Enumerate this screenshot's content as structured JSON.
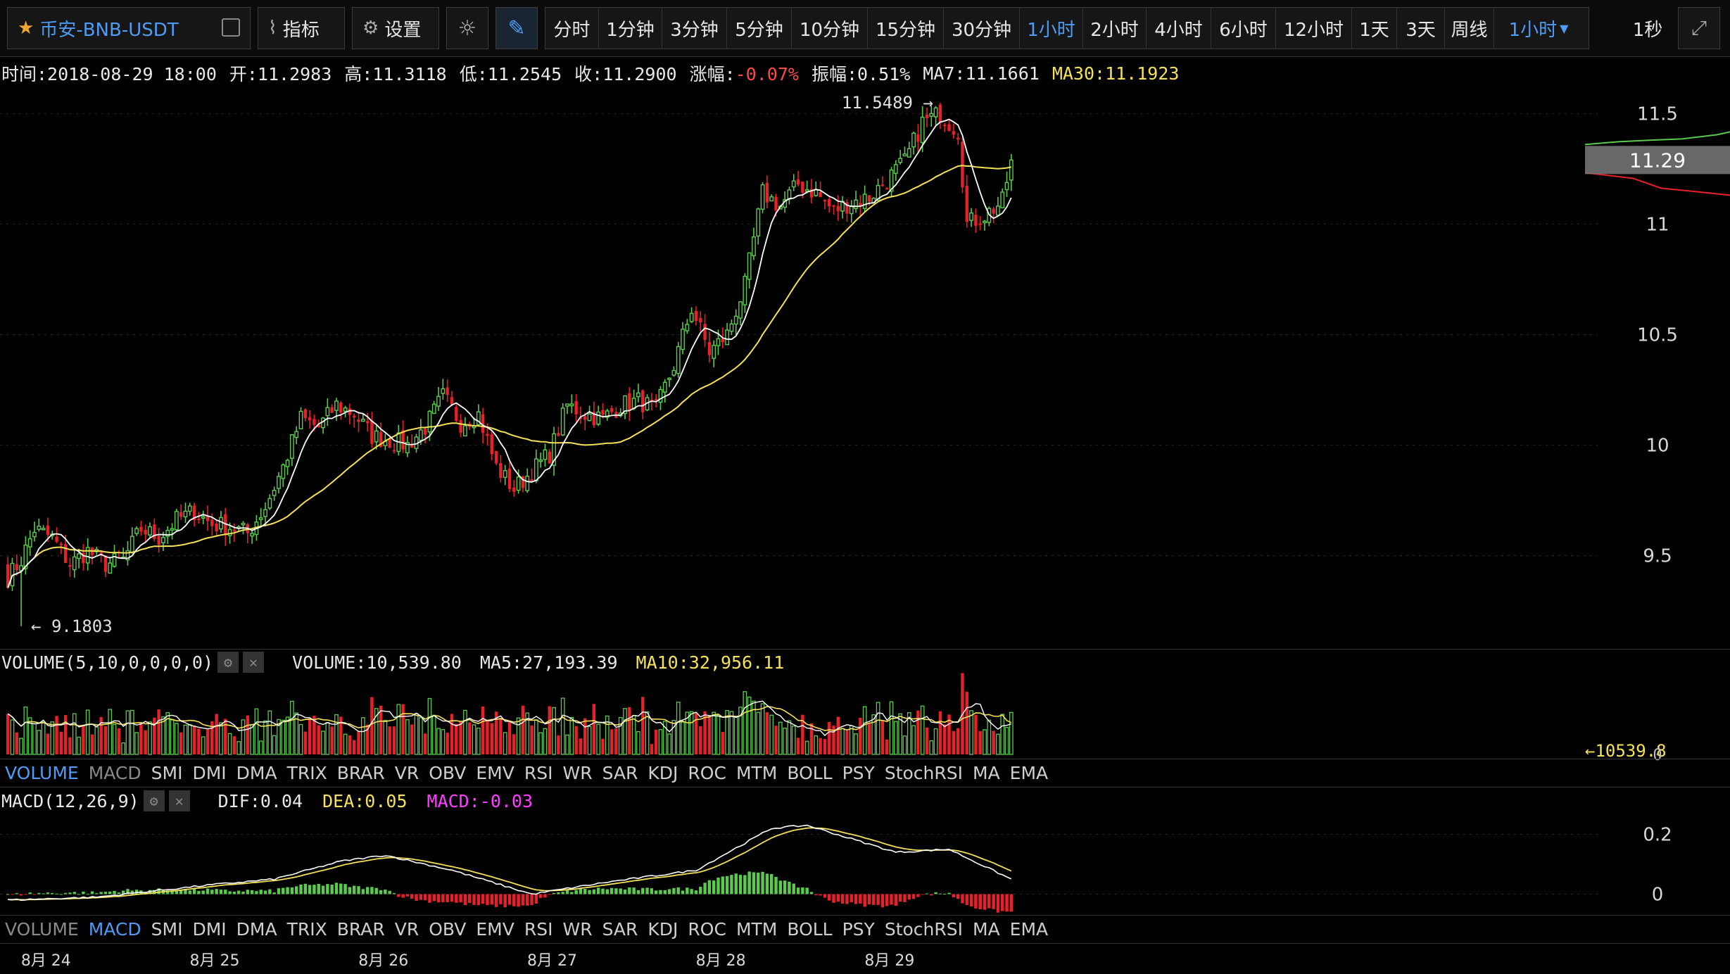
{
  "toolbar": {
    "symbol": "币安-BNB-USDT",
    "indicators_label": "指标",
    "settings_label": "设置",
    "intervals": [
      "分时",
      "1分钟",
      "3分钟",
      "5分钟",
      "10分钟",
      "15分钟",
      "30分钟",
      "1小时",
      "2小时",
      "4小时",
      "6小时",
      "12小时",
      "1天",
      "3天",
      "周线"
    ],
    "active_interval": "1小时",
    "dropdown_label": "1小时",
    "refresh_label": "1秒"
  },
  "info": {
    "time": "时间:2018-08-29 18:00",
    "open": "开:11.2983",
    "high": "高:11.3118",
    "low": "低:11.2545",
    "close": "收:11.2900",
    "change_label": "涨幅:",
    "change_value": "-0.07%",
    "amplitude": "振幅:0.51%",
    "ma7": "MA7:11.1661",
    "ma30": "MA30:11.1923"
  },
  "volume_panel": {
    "title": "VOLUME(5,10,0,0,0,0)",
    "volume": "VOLUME:10,539.80",
    "ma5": "MA5:27,193.39",
    "ma10": "MA10:32,956.11",
    "last_marker": "←10539.8",
    "zero_label": "0"
  },
  "macd_panel": {
    "title": "MACD(12,26,9)",
    "dif": "DIF:0.04",
    "dea": "DEA:0.05",
    "macd": "MACD:-0.03"
  },
  "indicator_tabs": [
    "VOLUME",
    "MACD",
    "SMI",
    "DMI",
    "DMA",
    "TRIX",
    "BRAR",
    "VR",
    "OBV",
    "EMV",
    "RSI",
    "WR",
    "SAR",
    "KDJ",
    "ROC",
    "MTM",
    "BOLL",
    "PSY",
    "StochRSI",
    "MA",
    "EMA"
  ],
  "colors": {
    "up": "#5cc94f",
    "down": "#e8202a",
    "ma7": "#ffffff",
    "ma30": "#f5e15a",
    "accent": "#4e9cf5",
    "macd_label": "#ff3dff"
  },
  "chart_data": {
    "type": "candlestick",
    "x_labels": [
      "8月 24",
      "8月 25",
      "8月 26",
      "8月 27",
      "8月 28",
      "8月 29"
    ],
    "price_ticks": [
      "11.5",
      "11",
      "10.5",
      "10",
      "9.5"
    ],
    "ylim": [
      9.1,
      11.6
    ],
    "current_price": "11.29",
    "max_marker": "11.5489 →",
    "min_marker": "← 9.1803",
    "macd_ticks": [
      "0.2",
      "0"
    ],
    "close_anchors": [
      [
        0,
        9.4
      ],
      [
        3,
        9.48
      ],
      [
        6,
        9.62
      ],
      [
        10,
        9.58
      ],
      [
        14,
        9.46
      ],
      [
        18,
        9.52
      ],
      [
        22,
        9.46
      ],
      [
        26,
        9.48
      ],
      [
        30,
        9.62
      ],
      [
        34,
        9.58
      ],
      [
        38,
        9.66
      ],
      [
        42,
        9.7
      ],
      [
        46,
        9.64
      ],
      [
        50,
        9.63
      ],
      [
        54,
        9.6
      ],
      [
        58,
        9.72
      ],
      [
        62,
        9.9
      ],
      [
        66,
        10.12
      ],
      [
        70,
        10.08
      ],
      [
        74,
        10.18
      ],
      [
        78,
        10.14
      ],
      [
        82,
        10.04
      ],
      [
        86,
        10.02
      ],
      [
        90,
        10.0
      ],
      [
        94,
        10.08
      ],
      [
        98,
        10.22
      ],
      [
        102,
        10.1
      ],
      [
        106,
        10.14
      ],
      [
        110,
        9.9
      ],
      [
        114,
        9.8
      ],
      [
        118,
        9.88
      ],
      [
        122,
        9.96
      ],
      [
        126,
        10.18
      ],
      [
        130,
        10.14
      ],
      [
        134,
        10.12
      ],
      [
        138,
        10.18
      ],
      [
        142,
        10.2
      ],
      [
        146,
        10.16
      ],
      [
        150,
        10.36
      ],
      [
        154,
        10.62
      ],
      [
        158,
        10.42
      ],
      [
        162,
        10.5
      ],
      [
        166,
        10.72
      ],
      [
        170,
        11.14
      ],
      [
        174,
        11.08
      ],
      [
        178,
        11.18
      ],
      [
        182,
        11.14
      ],
      [
        186,
        11.06
      ],
      [
        190,
        11.1
      ],
      [
        194,
        11.12
      ],
      [
        198,
        11.2
      ],
      [
        202,
        11.28
      ],
      [
        206,
        11.46
      ],
      [
        210,
        11.5
      ],
      [
        214,
        11.42
      ],
      [
        216,
        11.0
      ],
      [
        220,
        11.04
      ],
      [
        224,
        11.1
      ],
      [
        226,
        11.29
      ]
    ],
    "macd_dif_anchors": [
      [
        0,
        -0.02
      ],
      [
        20,
        -0.01
      ],
      [
        45,
        0.03
      ],
      [
        60,
        0.05
      ],
      [
        75,
        0.11
      ],
      [
        85,
        0.13
      ],
      [
        100,
        0.08
      ],
      [
        118,
        0.0
      ],
      [
        135,
        0.04
      ],
      [
        155,
        0.08
      ],
      [
        172,
        0.22
      ],
      [
        180,
        0.23
      ],
      [
        200,
        0.14
      ],
      [
        212,
        0.15
      ],
      [
        226,
        0.05
      ]
    ]
  }
}
